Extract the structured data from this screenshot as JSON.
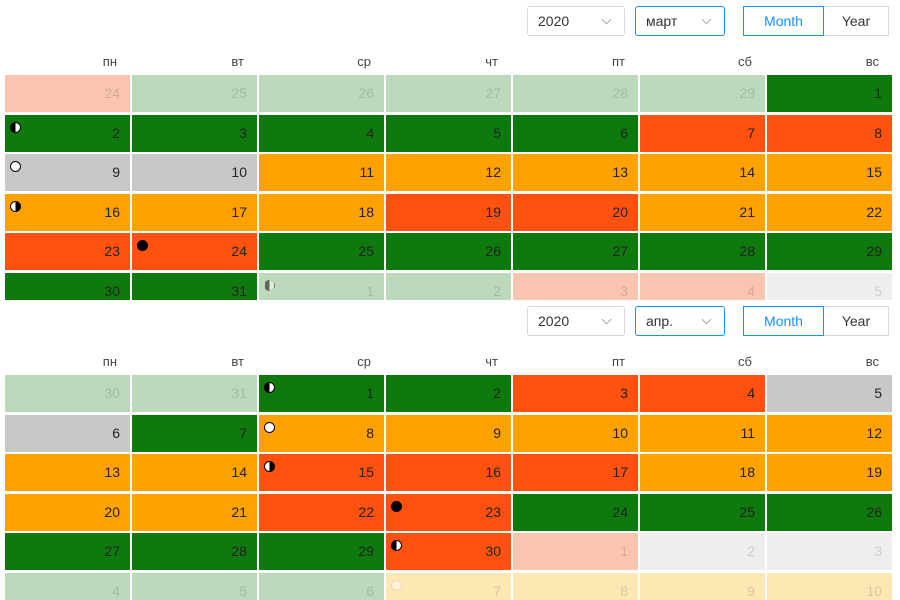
{
  "calendars": [
    {
      "year": "2020",
      "month": "март",
      "view_buttons": [
        "Month",
        "Year"
      ],
      "active_view": 0,
      "weekdays": [
        "пн",
        "вт",
        "ср",
        "чт",
        "пт",
        "сб",
        "вс"
      ],
      "weeks": [
        [
          {
            "day": 24,
            "color": "#f9c5ae",
            "faded": true
          },
          {
            "day": 25,
            "color": "#bcd9bc",
            "faded": true
          },
          {
            "day": 26,
            "color": "#bcd9bc",
            "faded": true
          },
          {
            "day": 27,
            "color": "#bcd9bc",
            "faded": true
          },
          {
            "day": 28,
            "color": "#bcd9bc",
            "faded": true
          },
          {
            "day": 29,
            "color": "#bcd9bc",
            "faded": true
          },
          {
            "day": 1,
            "color": "#0e7a0e"
          }
        ],
        [
          {
            "day": 2,
            "color": "#0e7a0e",
            "moon": "first-quarter"
          },
          {
            "day": 3,
            "color": "#0e7a0e"
          },
          {
            "day": 4,
            "color": "#0e7a0e"
          },
          {
            "day": 5,
            "color": "#0e7a0e"
          },
          {
            "day": 6,
            "color": "#0e7a0e"
          },
          {
            "day": 7,
            "color": "#ff5210"
          },
          {
            "day": 8,
            "color": "#ff5210"
          }
        ],
        [
          {
            "day": 9,
            "color": "#c8c8c8",
            "moon": "full"
          },
          {
            "day": 10,
            "color": "#c8c8c8"
          },
          {
            "day": 11,
            "color": "#ffa200"
          },
          {
            "day": 12,
            "color": "#ffa200"
          },
          {
            "day": 13,
            "color": "#ffa200"
          },
          {
            "day": 14,
            "color": "#ffa200"
          },
          {
            "day": 15,
            "color": "#ffa200"
          }
        ],
        [
          {
            "day": 16,
            "color": "#ffa200",
            "moon": "last-quarter"
          },
          {
            "day": 17,
            "color": "#ffa200"
          },
          {
            "day": 18,
            "color": "#ffa200"
          },
          {
            "day": 19,
            "color": "#ff5210"
          },
          {
            "day": 20,
            "color": "#ff5210"
          },
          {
            "day": 21,
            "color": "#ffa200"
          },
          {
            "day": 22,
            "color": "#ffa200"
          }
        ],
        [
          {
            "day": 23,
            "color": "#ff5210"
          },
          {
            "day": 24,
            "color": "#ff5210",
            "moon": "new"
          },
          {
            "day": 25,
            "color": "#0e7a0e"
          },
          {
            "day": 26,
            "color": "#0e7a0e"
          },
          {
            "day": 27,
            "color": "#0e7a0e"
          },
          {
            "day": 28,
            "color": "#0e7a0e"
          },
          {
            "day": 29,
            "color": "#0e7a0e"
          }
        ],
        [
          {
            "day": 30,
            "color": "#0e7a0e"
          },
          {
            "day": 31,
            "color": "#0e7a0e"
          },
          {
            "day": 1,
            "color": "#bcd9bc",
            "faded": true,
            "moon": "first-quarter"
          },
          {
            "day": 2,
            "color": "#bcd9bc",
            "faded": true
          },
          {
            "day": 3,
            "color": "#f9c5ae",
            "faded": true
          },
          {
            "day": 4,
            "color": "#f9c5ae",
            "faded": true
          },
          {
            "day": 5,
            "color": "#eeeeee",
            "faded": true
          }
        ]
      ]
    },
    {
      "year": "2020",
      "month": "апр.",
      "view_buttons": [
        "Month",
        "Year"
      ],
      "active_view": 0,
      "weekdays": [
        "пн",
        "вт",
        "ср",
        "чт",
        "пт",
        "сб",
        "вс"
      ],
      "weeks": [
        [
          {
            "day": 30,
            "color": "#bcd9bc",
            "faded": true
          },
          {
            "day": 31,
            "color": "#bcd9bc",
            "faded": true
          },
          {
            "day": 1,
            "color": "#0e7a0e",
            "moon": "first-quarter"
          },
          {
            "day": 2,
            "color": "#0e7a0e"
          },
          {
            "day": 3,
            "color": "#ff5210"
          },
          {
            "day": 4,
            "color": "#ff5210"
          },
          {
            "day": 5,
            "color": "#c8c8c8"
          }
        ],
        [
          {
            "day": 6,
            "color": "#c8c8c8"
          },
          {
            "day": 7,
            "color": "#0e7a0e"
          },
          {
            "day": 8,
            "color": "#ffa200",
            "moon": "full"
          },
          {
            "day": 9,
            "color": "#ffa200"
          },
          {
            "day": 10,
            "color": "#ffa200"
          },
          {
            "day": 11,
            "color": "#ffa200"
          },
          {
            "day": 12,
            "color": "#ffa200"
          }
        ],
        [
          {
            "day": 13,
            "color": "#ffa200"
          },
          {
            "day": 14,
            "color": "#ffa200"
          },
          {
            "day": 15,
            "color": "#ff5210",
            "moon": "last-quarter"
          },
          {
            "day": 16,
            "color": "#ff5210"
          },
          {
            "day": 17,
            "color": "#ff5210"
          },
          {
            "day": 18,
            "color": "#ffa200"
          },
          {
            "day": 19,
            "color": "#ffa200"
          }
        ],
        [
          {
            "day": 20,
            "color": "#ffa200"
          },
          {
            "day": 21,
            "color": "#ffa200"
          },
          {
            "day": 22,
            "color": "#ff5210"
          },
          {
            "day": 23,
            "color": "#ff5210",
            "moon": "new"
          },
          {
            "day": 24,
            "color": "#0e7a0e"
          },
          {
            "day": 25,
            "color": "#0e7a0e"
          },
          {
            "day": 26,
            "color": "#0e7a0e"
          }
        ],
        [
          {
            "day": 27,
            "color": "#0e7a0e"
          },
          {
            "day": 28,
            "color": "#0e7a0e"
          },
          {
            "day": 29,
            "color": "#0e7a0e"
          },
          {
            "day": 30,
            "color": "#ff5210",
            "moon": "first-quarter"
          },
          {
            "day": 1,
            "color": "#f9c5ae",
            "faded": true
          },
          {
            "day": 2,
            "color": "#eeeeee",
            "faded": true
          },
          {
            "day": 3,
            "color": "#eeeeee",
            "faded": true
          }
        ],
        [
          {
            "day": 4,
            "color": "#bcd9bc",
            "faded": true
          },
          {
            "day": 5,
            "color": "#bcd9bc",
            "faded": true
          },
          {
            "day": 6,
            "color": "#bcd9bc",
            "faded": true
          },
          {
            "day": 7,
            "color": "#fde7b2",
            "faded": true,
            "moon": "full"
          },
          {
            "day": 8,
            "color": "#fde7b2",
            "faded": true
          },
          {
            "day": 9,
            "color": "#fde7b2",
            "faded": true
          },
          {
            "day": 10,
            "color": "#fde7b2",
            "faded": true
          }
        ]
      ]
    }
  ]
}
